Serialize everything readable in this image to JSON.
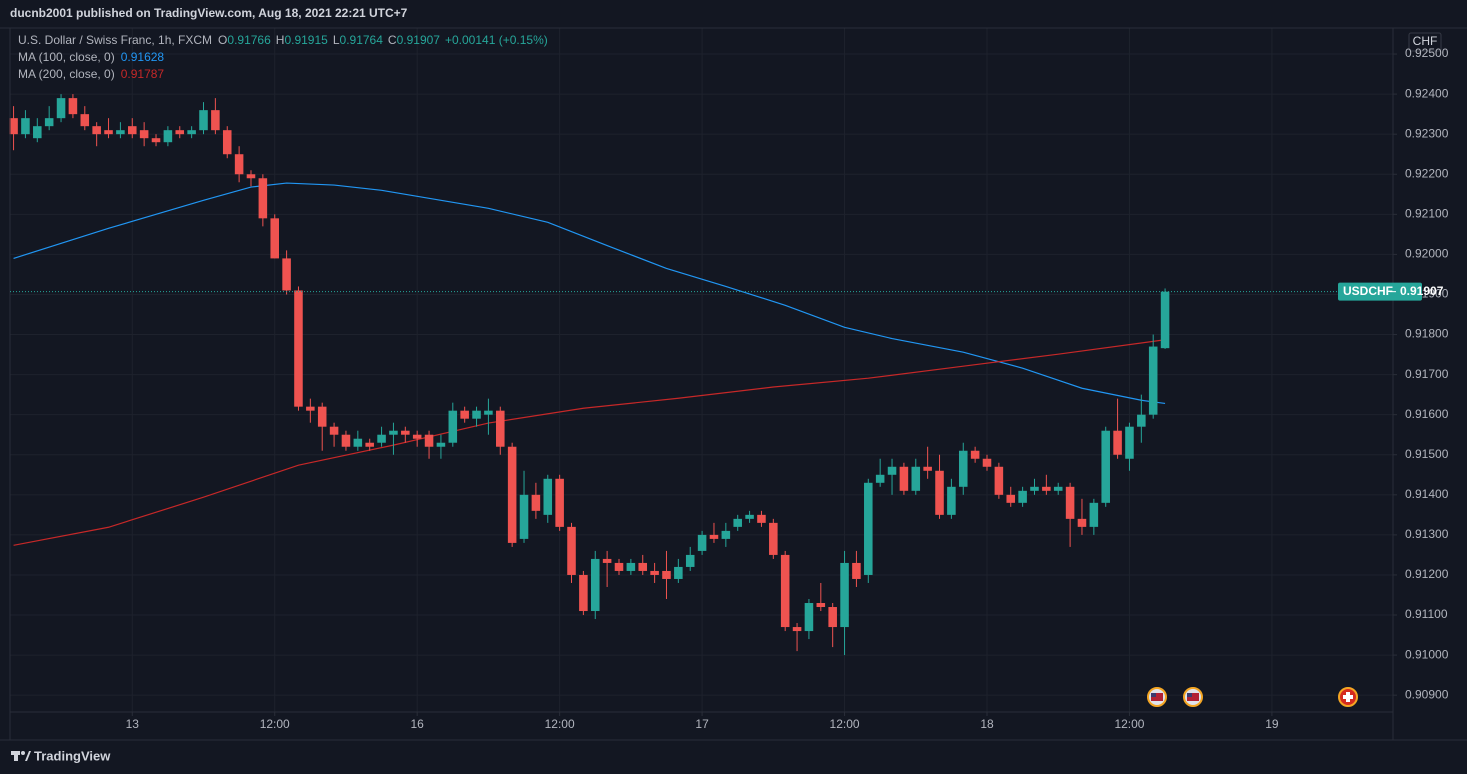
{
  "publisher": "ducnb2001 published on TradingView.com, Aug 18, 2021 22:21 UTC+7",
  "footer": "TradingView",
  "chart_data": {
    "type": "candlestick",
    "title": "U.S. Dollar / Swiss Franc, 1h, FXCM",
    "ohlc_labels": [
      "O",
      "H",
      "L",
      "C"
    ],
    "change": "+0.00141 (+0.15%)",
    "currency": "CHF",
    "symbol_tag": "USDCHF",
    "last_price": 0.91907,
    "up_color": "#26a69a",
    "down_color": "#ef5350",
    "grid": true,
    "candles": [
      [
        0.9234,
        0.9237,
        0.9226,
        0.923
      ],
      [
        0.923,
        0.9236,
        0.9229,
        0.9234
      ],
      [
        0.9229,
        0.9234,
        0.9228,
        0.9232
      ],
      [
        0.9232,
        0.9237,
        0.9231,
        0.9234
      ],
      [
        0.9234,
        0.924,
        0.9233,
        0.9239
      ],
      [
        0.9239,
        0.924,
        0.9234,
        0.9235
      ],
      [
        0.9235,
        0.9237,
        0.9231,
        0.9232
      ],
      [
        0.9232,
        0.9233,
        0.9227,
        0.923
      ],
      [
        0.9231,
        0.9234,
        0.9229,
        0.923
      ],
      [
        0.923,
        0.9233,
        0.9229,
        0.9231
      ],
      [
        0.9232,
        0.9234,
        0.9229,
        0.923
      ],
      [
        0.9231,
        0.9233,
        0.9227,
        0.9229
      ],
      [
        0.9229,
        0.923,
        0.9227,
        0.9228
      ],
      [
        0.9228,
        0.9232,
        0.9227,
        0.9231
      ],
      [
        0.9231,
        0.9232,
        0.9229,
        0.923
      ],
      [
        0.923,
        0.9232,
        0.9229,
        0.9231
      ],
      [
        0.9231,
        0.9238,
        0.923,
        0.9236
      ],
      [
        0.9236,
        0.9239,
        0.923,
        0.9231
      ],
      [
        0.9231,
        0.9232,
        0.9224,
        0.9225
      ],
      [
        0.9225,
        0.9227,
        0.9218,
        0.922
      ],
      [
        0.922,
        0.9221,
        0.9217,
        0.9219
      ],
      [
        0.9219,
        0.922,
        0.9207,
        0.9209
      ],
      [
        0.9209,
        0.921,
        0.9199,
        0.9199
      ],
      [
        0.9199,
        0.9201,
        0.919,
        0.9191
      ],
      [
        0.9191,
        0.9192,
        0.9161,
        0.9162
      ],
      [
        0.9162,
        0.9164,
        0.9158,
        0.9161
      ],
      [
        0.9162,
        0.9163,
        0.9151,
        0.9157
      ],
      [
        0.9157,
        0.9158,
        0.9152,
        0.9155
      ],
      [
        0.9155,
        0.9156,
        0.9151,
        0.9152
      ],
      [
        0.9152,
        0.9156,
        0.9151,
        0.9154
      ],
      [
        0.9153,
        0.9154,
        0.9151,
        0.9152
      ],
      [
        0.9153,
        0.9157,
        0.9152,
        0.9155
      ],
      [
        0.9155,
        0.9158,
        0.915,
        0.9156
      ],
      [
        0.9156,
        0.9157,
        0.9153,
        0.9155
      ],
      [
        0.9155,
        0.9156,
        0.9152,
        0.9154
      ],
      [
        0.9155,
        0.9156,
        0.9149,
        0.9152
      ],
      [
        0.9152,
        0.9155,
        0.9149,
        0.9153
      ],
      [
        0.9153,
        0.9163,
        0.9152,
        0.9161
      ],
      [
        0.9161,
        0.9162,
        0.9158,
        0.9159
      ],
      [
        0.9159,
        0.9162,
        0.9157,
        0.9161
      ],
      [
        0.916,
        0.9164,
        0.9155,
        0.9161
      ],
      [
        0.9161,
        0.9162,
        0.915,
        0.9152
      ],
      [
        0.9152,
        0.9153,
        0.9127,
        0.9128
      ],
      [
        0.9129,
        0.9146,
        0.9128,
        0.914
      ],
      [
        0.914,
        0.9143,
        0.9134,
        0.9136
      ],
      [
        0.9135,
        0.9145,
        0.9133,
        0.9144
      ],
      [
        0.9144,
        0.9145,
        0.9131,
        0.9132
      ],
      [
        0.9132,
        0.9133,
        0.9118,
        0.912
      ],
      [
        0.912,
        0.9121,
        0.911,
        0.9111
      ],
      [
        0.9111,
        0.9126,
        0.9109,
        0.9124
      ],
      [
        0.9124,
        0.9126,
        0.9117,
        0.9123
      ],
      [
        0.9123,
        0.9124,
        0.912,
        0.9121
      ],
      [
        0.9121,
        0.9124,
        0.912,
        0.9123
      ],
      [
        0.9123,
        0.9125,
        0.912,
        0.9121
      ],
      [
        0.9121,
        0.9123,
        0.9118,
        0.912
      ],
      [
        0.9121,
        0.9126,
        0.9114,
        0.9119
      ],
      [
        0.9119,
        0.9124,
        0.9118,
        0.9122
      ],
      [
        0.9122,
        0.9127,
        0.9121,
        0.9125
      ],
      [
        0.9126,
        0.9131,
        0.9125,
        0.913
      ],
      [
        0.913,
        0.9133,
        0.9128,
        0.9129
      ],
      [
        0.9129,
        0.9133,
        0.9127,
        0.9131
      ],
      [
        0.9132,
        0.9135,
        0.9131,
        0.9134
      ],
      [
        0.9134,
        0.9136,
        0.9133,
        0.9135
      ],
      [
        0.9135,
        0.9136,
        0.9132,
        0.9133
      ],
      [
        0.9133,
        0.9134,
        0.9124,
        0.9125
      ],
      [
        0.9125,
        0.9126,
        0.9106,
        0.9107
      ],
      [
        0.9107,
        0.9108,
        0.9101,
        0.9106
      ],
      [
        0.9106,
        0.9114,
        0.9104,
        0.9113
      ],
      [
        0.9113,
        0.9118,
        0.9111,
        0.9112
      ],
      [
        0.9112,
        0.9113,
        0.9102,
        0.9107
      ],
      [
        0.9107,
        0.9126,
        0.91,
        0.9123
      ],
      [
        0.9123,
        0.9126,
        0.9117,
        0.9119
      ],
      [
        0.912,
        0.9144,
        0.9118,
        0.9143
      ],
      [
        0.9143,
        0.9149,
        0.9142,
        0.9145
      ],
      [
        0.9145,
        0.9149,
        0.914,
        0.9147
      ],
      [
        0.9147,
        0.9148,
        0.914,
        0.9141
      ],
      [
        0.9141,
        0.9149,
        0.914,
        0.9147
      ],
      [
        0.9147,
        0.9152,
        0.9144,
        0.9146
      ],
      [
        0.9146,
        0.915,
        0.9134,
        0.9135
      ],
      [
        0.9135,
        0.9144,
        0.9134,
        0.9142
      ],
      [
        0.9142,
        0.9153,
        0.914,
        0.9151
      ],
      [
        0.9151,
        0.9152,
        0.9148,
        0.9149
      ],
      [
        0.9149,
        0.915,
        0.9146,
        0.9147
      ],
      [
        0.9147,
        0.9148,
        0.9139,
        0.914
      ],
      [
        0.914,
        0.9142,
        0.9137,
        0.9138
      ],
      [
        0.9138,
        0.9142,
        0.9137,
        0.9141
      ],
      [
        0.9141,
        0.9144,
        0.914,
        0.9142
      ],
      [
        0.9142,
        0.9145,
        0.914,
        0.9141
      ],
      [
        0.9141,
        0.9143,
        0.914,
        0.9142
      ],
      [
        0.9142,
        0.9143,
        0.9127,
        0.9134
      ],
      [
        0.9134,
        0.9139,
        0.913,
        0.9132
      ],
      [
        0.9132,
        0.9139,
        0.913,
        0.9138
      ],
      [
        0.9138,
        0.9157,
        0.9137,
        0.9156
      ],
      [
        0.9156,
        0.9164,
        0.9149,
        0.915
      ],
      [
        0.9149,
        0.9158,
        0.9146,
        0.9157
      ],
      [
        0.9157,
        0.9165,
        0.9153,
        0.916
      ],
      [
        0.916,
        0.918,
        0.9159,
        0.9177
      ],
      [
        0.91766,
        0.91915,
        0.91764,
        0.91907
      ]
    ],
    "series": [
      {
        "name": "MA (100, close, 0)",
        "color": "#2196f3",
        "x": [
          0,
          8,
          12,
          16,
          20,
          23,
          27,
          31,
          35,
          40,
          45,
          50,
          55,
          60,
          65,
          70,
          74,
          80,
          85,
          90,
          95,
          97
        ],
        "values": [
          0.9199,
          0.92065,
          0.921,
          0.92135,
          0.92168,
          0.92178,
          0.92173,
          0.9216,
          0.9214,
          0.92115,
          0.9208,
          0.92022,
          0.91965,
          0.9192,
          0.91873,
          0.91818,
          0.9179,
          0.91756,
          0.91716,
          0.91666,
          0.91636,
          0.91628
        ]
      },
      {
        "name": "MA (200, close, 0)",
        "color": "#c62828",
        "x": [
          0,
          8,
          16,
          24,
          32,
          40,
          48,
          56,
          64,
          72,
          80,
          88,
          97
        ],
        "values": [
          0.91274,
          0.91319,
          0.91394,
          0.91474,
          0.91524,
          0.91579,
          0.91616,
          0.91641,
          0.91669,
          0.91691,
          0.91721,
          0.91751,
          0.91787
        ]
      }
    ],
    "xlim": [
      -0.3,
      116.2
    ],
    "xticks": [
      {
        "value": 10,
        "label": "13"
      },
      {
        "value": 22,
        "label": "12:00"
      },
      {
        "value": 34,
        "label": "16"
      },
      {
        "value": 46,
        "label": "12:00"
      },
      {
        "value": 58,
        "label": "17"
      },
      {
        "value": 70,
        "label": "12:00"
      },
      {
        "value": 82,
        "label": "18"
      },
      {
        "value": 94,
        "label": "12:00"
      },
      {
        "value": 106,
        "label": "19"
      }
    ],
    "ylim": [
      0.90858,
      0.92565
    ],
    "yticks": [
      {
        "value": 0.925,
        "label": "0.92500"
      },
      {
        "value": 0.924,
        "label": "0.92400"
      },
      {
        "value": 0.923,
        "label": "0.92300"
      },
      {
        "value": 0.922,
        "label": "0.92200"
      },
      {
        "value": 0.921,
        "label": "0.92100"
      },
      {
        "value": 0.92,
        "label": "0.92000"
      },
      {
        "value": 0.919,
        "label": "0.91900"
      },
      {
        "value": 0.918,
        "label": "0.91800"
      },
      {
        "value": 0.917,
        "label": "0.91700"
      },
      {
        "value": 0.916,
        "label": "0.91600"
      },
      {
        "value": 0.915,
        "label": "0.91500"
      },
      {
        "value": 0.914,
        "label": "0.91400"
      },
      {
        "value": 0.913,
        "label": "0.91300"
      },
      {
        "value": 0.912,
        "label": "0.91200"
      },
      {
        "value": 0.911,
        "label": "0.91100"
      },
      {
        "value": 0.91,
        "label": "0.91000"
      },
      {
        "value": 0.909,
        "label": "0.90900"
      }
    ]
  }
}
